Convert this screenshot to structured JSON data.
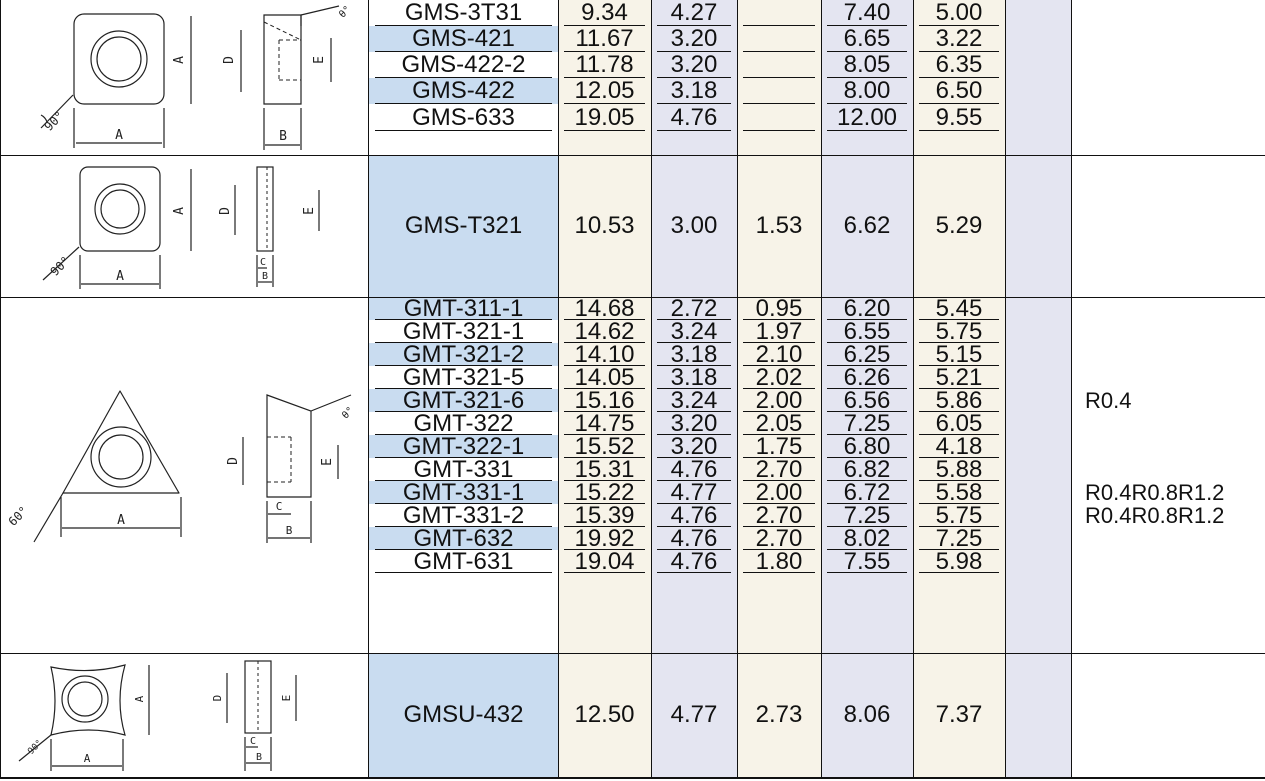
{
  "groups": [
    {
      "figure": "square-insert-with-inclined-side",
      "figure_labels": {
        "a_top": "A",
        "a_bottom": "A",
        "angle": "90°",
        "d": "D",
        "e": "E",
        "b": "B",
        "theta": "θ°"
      },
      "rows": [
        {
          "model": "GMS-3T31",
          "a": "9.34",
          "b": "4.27",
          "c": "",
          "d": "7.40",
          "e": "5.00",
          "note": ""
        },
        {
          "model": "GMS-421",
          "a": "11.67",
          "b": "3.20",
          "c": "",
          "d": "6.65",
          "e": "3.22",
          "note": ""
        },
        {
          "model": "GMS-422-2",
          "a": "11.78",
          "b": "3.20",
          "c": "",
          "d": "8.05",
          "e": "6.35",
          "note": ""
        },
        {
          "model": "GMS-422",
          "a": "12.05",
          "b": "3.18",
          "c": "",
          "d": "8.00",
          "e": "6.50",
          "note": ""
        },
        {
          "model": "GMS-633",
          "a": "19.05",
          "b": "4.76",
          "c": "",
          "d": "12.00",
          "e": "9.55",
          "note": ""
        }
      ]
    },
    {
      "figure": "square-insert-with-step",
      "figure_labels": {
        "a_top": "A",
        "a_bottom": "A",
        "angle": "90°",
        "d": "D",
        "e": "E",
        "b": "B",
        "c": "C"
      },
      "rows": [
        {
          "model": "GMS-T321",
          "a": "10.53",
          "b": "3.00",
          "c": "1.53",
          "d": "6.62",
          "e": "5.29",
          "note": ""
        }
      ]
    },
    {
      "figure": "triangle-insert",
      "figure_labels": {
        "a": "A",
        "angle": "60°",
        "d": "D",
        "e": "E",
        "b": "B",
        "c": "C",
        "theta": "θ°"
      },
      "rows": [
        {
          "model": "GMT-311-1",
          "a": "14.68",
          "b": "2.72",
          "c": "0.95",
          "d": "6.20",
          "e": "5.45",
          "note": ""
        },
        {
          "model": "GMT-321-1",
          "a": "14.62",
          "b": "3.24",
          "c": "1.97",
          "d": "6.55",
          "e": "5.75",
          "note": ""
        },
        {
          "model": "GMT-321-2",
          "a": "14.10",
          "b": "3.18",
          "c": "2.10",
          "d": "6.25",
          "e": "5.15",
          "note": ""
        },
        {
          "model": "GMT-321-5",
          "a": "14.05",
          "b": "3.18",
          "c": "2.02",
          "d": "6.26",
          "e": "5.21",
          "note": ""
        },
        {
          "model": "GMT-321-6",
          "a": "15.16",
          "b": "3.24",
          "c": "2.00",
          "d": "6.56",
          "e": "5.86",
          "note": "R0.4"
        },
        {
          "model": "GMT-322",
          "a": "14.75",
          "b": "3.20",
          "c": "2.05",
          "d": "7.25",
          "e": "6.05",
          "note": ""
        },
        {
          "model": "GMT-322-1",
          "a": "15.52",
          "b": "3.20",
          "c": "1.75",
          "d": "6.80",
          "e": "4.18",
          "note": ""
        },
        {
          "model": "GMT-331",
          "a": "15.31",
          "b": "4.76",
          "c": "2.70",
          "d": "6.82",
          "e": "5.88",
          "note": ""
        },
        {
          "model": "GMT-331-1",
          "a": "15.22",
          "b": "4.77",
          "c": "2.00",
          "d": "6.72",
          "e": "5.58",
          "note": "R0.4R0.8R1.2"
        },
        {
          "model": "GMT-331-2",
          "a": "15.39",
          "b": "4.76",
          "c": "2.70",
          "d": "7.25",
          "e": "5.75",
          "note": "R0.4R0.8R1.2"
        },
        {
          "model": "GMT-632",
          "a": "19.92",
          "b": "4.76",
          "c": "2.70",
          "d": "8.02",
          "e": "7.25",
          "note": ""
        },
        {
          "model": "GMT-631",
          "a": "19.04",
          "b": "4.76",
          "c": "1.80",
          "d": "7.55",
          "e": "5.98",
          "note": ""
        }
      ]
    },
    {
      "figure": "square-concave-insert",
      "figure_labels": {
        "a": "A",
        "a_side": "A",
        "angle": "90°",
        "d": "D",
        "e": "E",
        "b": "B",
        "c": "C"
      },
      "rows": [
        {
          "model": "GMSU-432",
          "a": "12.50",
          "b": "4.77",
          "c": "2.73",
          "d": "8.06",
          "e": "7.37",
          "note": ""
        }
      ]
    }
  ],
  "colors": {
    "highlight_blue": "#c9dcf0",
    "column_lavender": "#e4e5f1",
    "cream": "#f7f3e8",
    "line": "#111111"
  }
}
